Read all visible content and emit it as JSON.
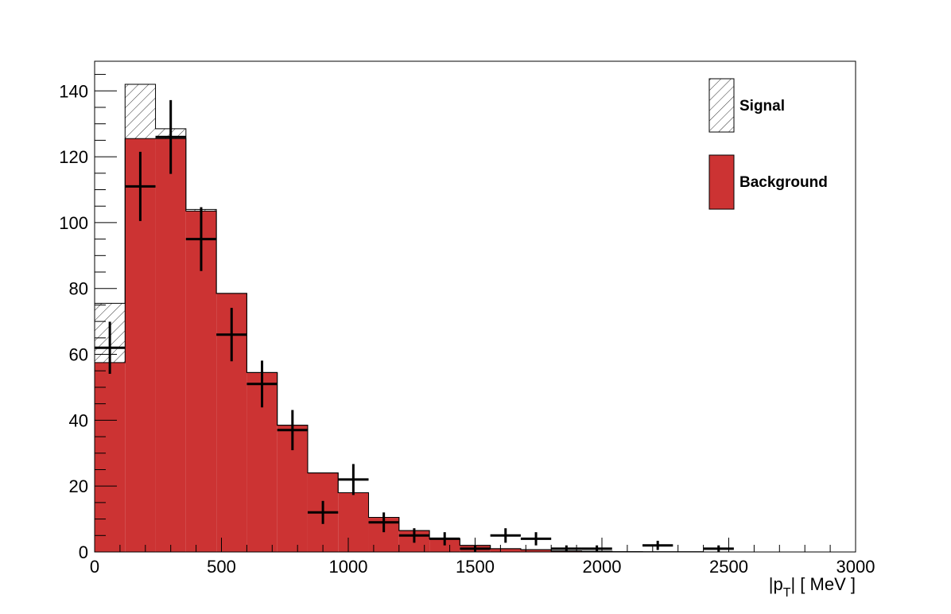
{
  "chart_data": {
    "type": "bar",
    "title": "",
    "xlabel": {
      "main": "|p",
      "sub": "T",
      "tail": "|  [ MeV ]"
    },
    "ylabel": "",
    "xlim": [
      0,
      3000
    ],
    "ylim": [
      0,
      149
    ],
    "bin_edges": [
      0,
      120,
      240,
      360,
      480,
      600,
      720,
      840,
      960,
      1080,
      1200,
      1320,
      1440,
      1560,
      1680,
      1800,
      1920,
      2040,
      2160,
      2280,
      2400,
      2520,
      2640,
      2760,
      2880,
      3000
    ],
    "x_ticks": [
      0,
      500,
      1000,
      1500,
      2000,
      2500,
      3000
    ],
    "x_tick_labels": [
      "0",
      "500",
      "1000",
      "1500",
      "2000",
      "2500",
      "3000"
    ],
    "y_ticks": [
      0,
      20,
      40,
      60,
      80,
      100,
      120,
      140
    ],
    "y_tick_labels": [
      "0",
      "20",
      "40",
      "60",
      "80",
      "100",
      "120",
      "140"
    ],
    "series": [
      {
        "name": "Background",
        "style": "filled",
        "color": "#cc3333",
        "values": [
          57.5,
          125.5,
          125.5,
          103.5,
          78.5,
          54.5,
          38.5,
          24,
          18,
          10.5,
          6.5,
          4,
          2,
          1,
          0.7,
          0.3,
          0.2,
          0.1,
          0.05,
          0.05,
          0,
          0,
          0,
          0,
          0
        ]
      },
      {
        "name": "Signal",
        "style": "hatched",
        "color": "#000000",
        "stacked_on": "Background",
        "values": [
          18,
          16.5,
          3,
          0.5,
          0,
          0,
          0,
          0,
          0,
          0,
          0,
          0,
          0,
          0,
          0,
          0,
          0,
          0,
          0,
          0,
          0,
          0,
          0,
          0,
          0
        ]
      }
    ],
    "points": {
      "x": [
        60,
        180,
        300,
        420,
        540,
        660,
        780,
        900,
        1020,
        1140,
        1260,
        1380,
        1500,
        1620,
        1740,
        1860,
        1980,
        2220,
        2460
      ],
      "y": [
        62,
        111,
        126,
        95,
        66,
        51,
        37,
        12,
        22,
        9,
        5,
        4,
        1,
        5,
        4,
        1,
        1,
        2,
        1
      ],
      "y_err": [
        7.9,
        10.5,
        11.2,
        9.7,
        8.1,
        7.1,
        6.1,
        3.5,
        4.7,
        3,
        2.2,
        2,
        1,
        2.2,
        2,
        1,
        1,
        1.4,
        1
      ],
      "x_half_width": 60,
      "color": "#000000"
    },
    "legend": {
      "position": "top-right",
      "entries": [
        {
          "label": "Signal",
          "style": "hatched"
        },
        {
          "label": "Background",
          "style": "filled",
          "color": "#cc3333"
        }
      ]
    },
    "grid": false
  }
}
